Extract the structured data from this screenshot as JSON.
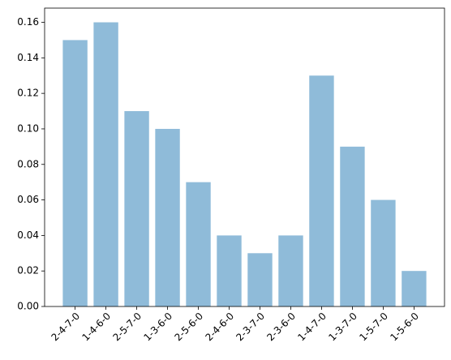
{
  "chart_data": {
    "type": "bar",
    "categories": [
      "2-4-7-0",
      "1-4-6-0",
      "2-5-7-0",
      "1-3-6-0",
      "2-5-6-0",
      "2-4-6-0",
      "2-3-7-0",
      "2-3-6-0",
      "1-4-7-0",
      "1-3-7-0",
      "1-5-7-0",
      "1-5-6-0"
    ],
    "values": [
      0.15,
      0.16,
      0.11,
      0.1,
      0.07,
      0.04,
      0.03,
      0.04,
      0.13,
      0.09,
      0.06,
      0.02
    ],
    "color": "#8fbbd9",
    "ylim": [
      0,
      0.168
    ],
    "yticks": [
      {
        "value": 0,
        "label": "0.00"
      },
      {
        "value": 0.02,
        "label": "0.02"
      },
      {
        "value": 0.04,
        "label": "0.04"
      },
      {
        "value": 0.06,
        "label": "0.06"
      },
      {
        "value": 0.08,
        "label": "0.08"
      },
      {
        "value": 0.1,
        "label": "0.10"
      },
      {
        "value": 0.12,
        "label": "0.12"
      },
      {
        "value": 0.14,
        "label": "0.14"
      },
      {
        "value": 0.16,
        "label": "0.16"
      }
    ],
    "grid": false
  }
}
